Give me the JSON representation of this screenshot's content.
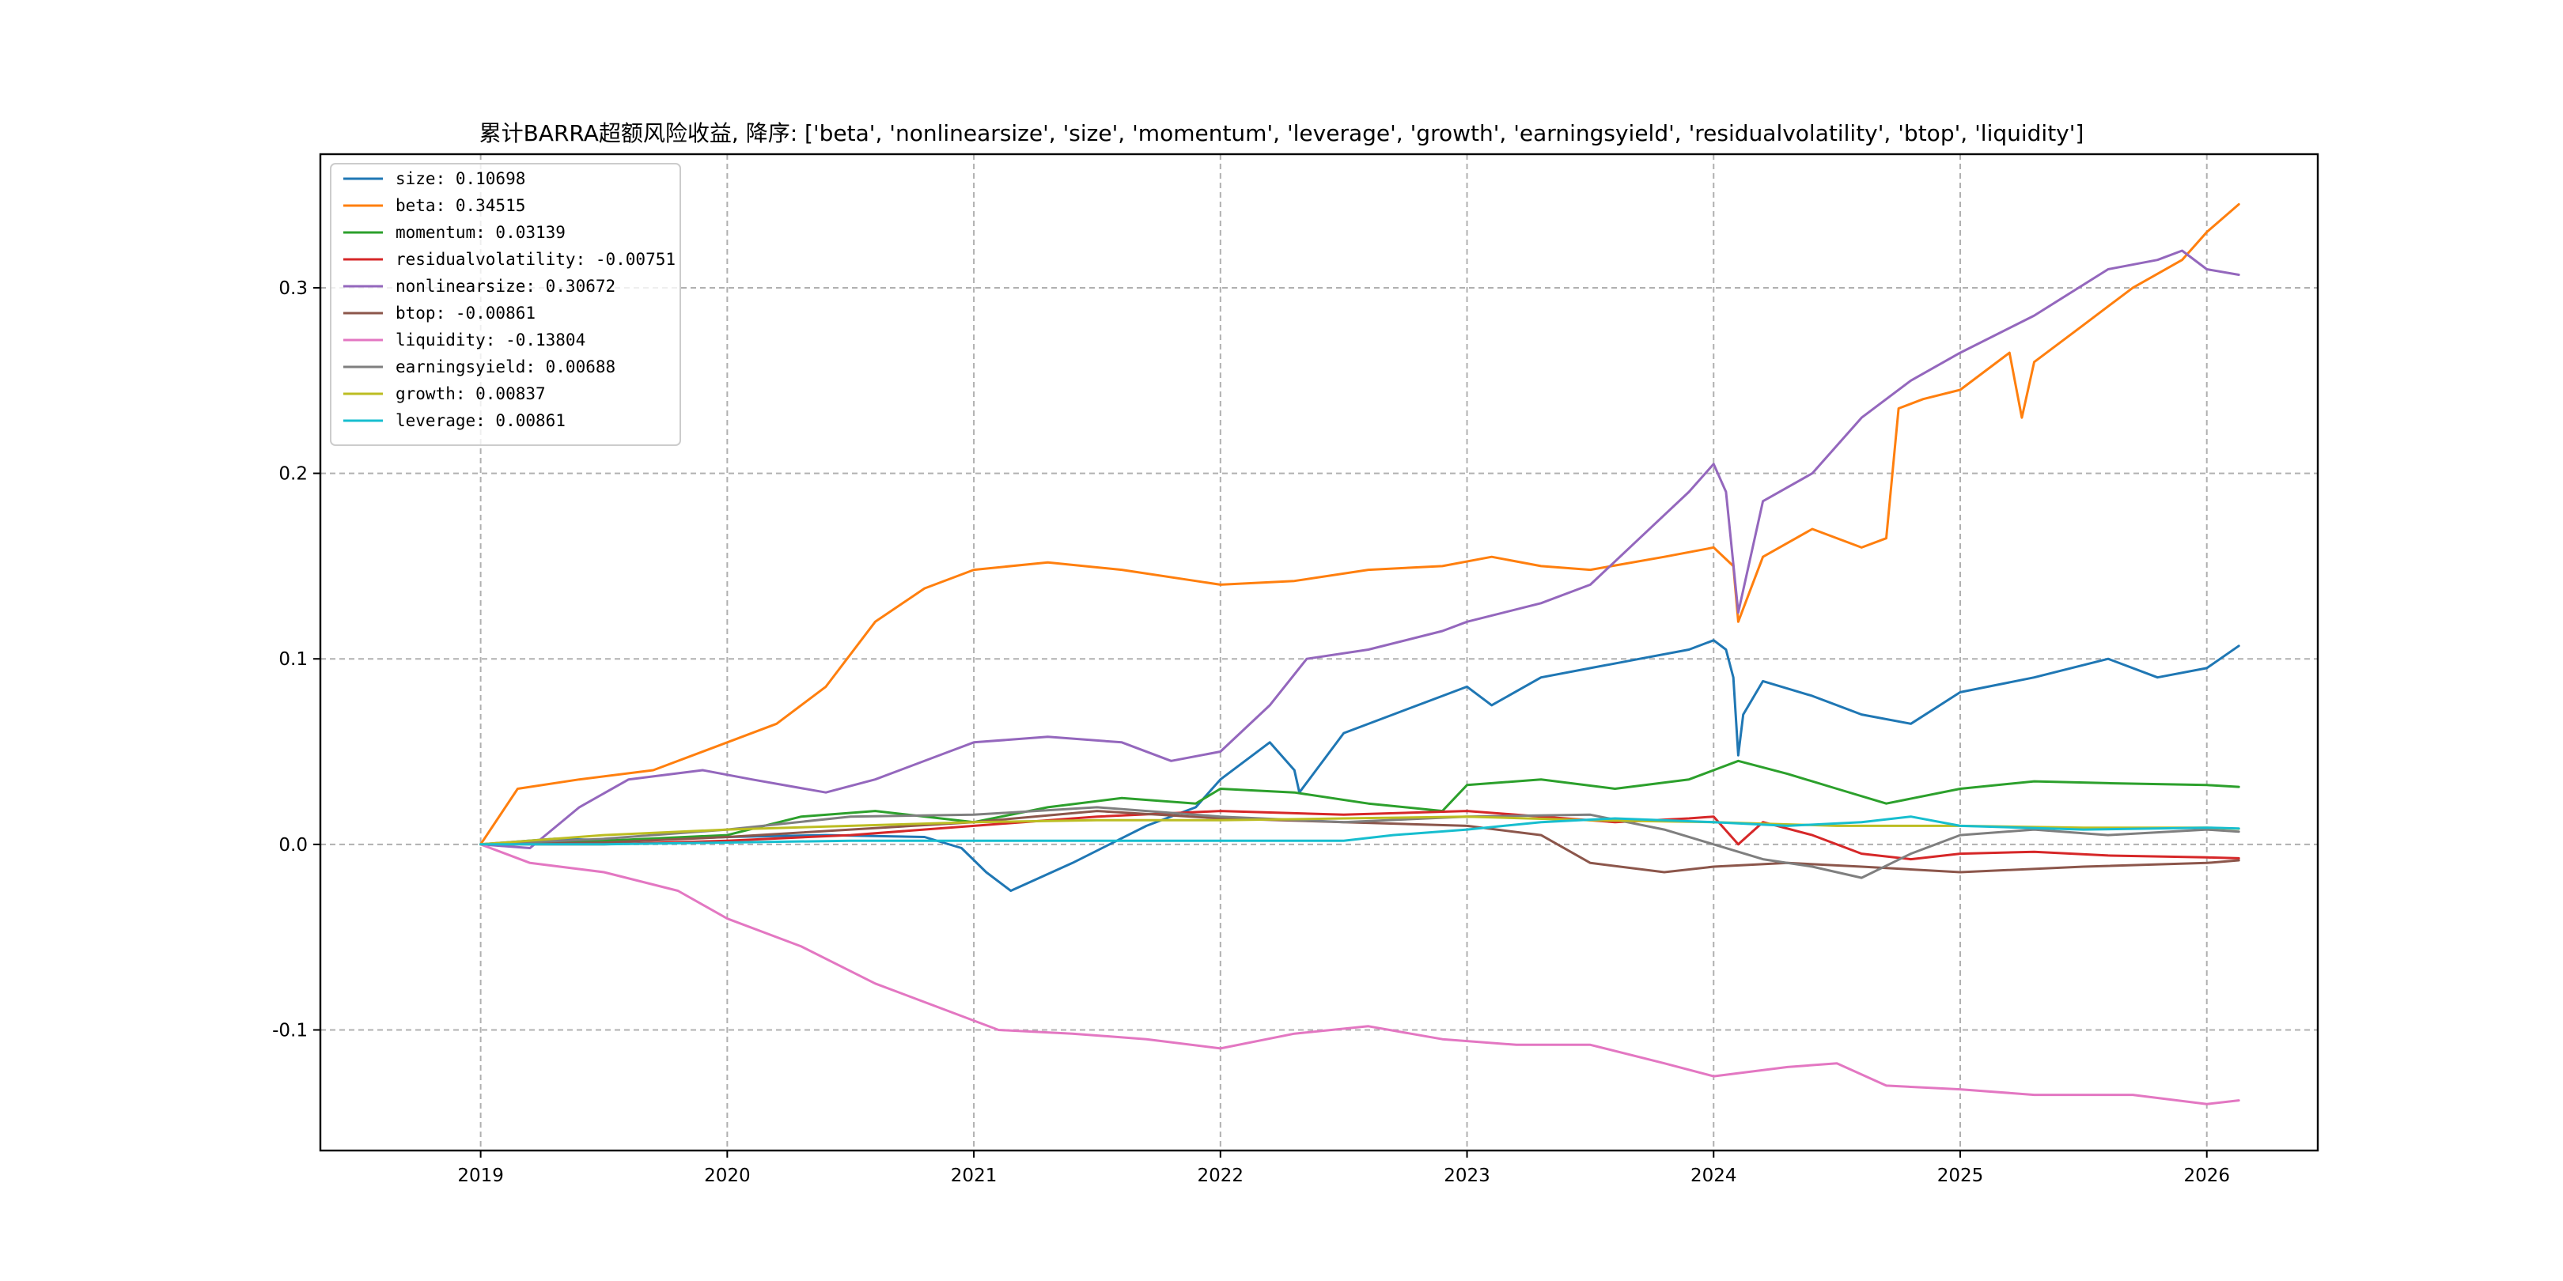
{
  "chart_data": {
    "type": "line",
    "title": "累计BARRA超额风险收益,  降序: ['beta', 'nonlinearsize', 'size', 'momentum', 'leverage', 'growth', 'earningsyield', 'residualvolatility', 'btop', 'liquidity']",
    "xlabel": "",
    "ylabel": "",
    "x_ticks": [
      "2019",
      "2020",
      "2021",
      "2022",
      "2023",
      "2024",
      "2025",
      "2026"
    ],
    "y_ticks": [
      "-0.1",
      "0.0",
      "0.1",
      "0.2",
      "0.3"
    ],
    "y_tick_values": [
      -0.1,
      0.0,
      0.1,
      0.2,
      0.3
    ],
    "xlim": [
      2018.35,
      2026.45
    ],
    "ylim": [
      -0.165,
      0.372
    ],
    "grid": true,
    "legend_position": "top-left",
    "series": [
      {
        "name": "size",
        "legend": "size: 0.10698",
        "color": "#1f77b4",
        "x": [
          2019.0,
          2019.3,
          2019.6,
          2020.0,
          2020.4,
          2020.8,
          2020.95,
          2021.05,
          2021.15,
          2021.4,
          2021.7,
          2021.9,
          2022.0,
          2022.2,
          2022.3,
          2022.32,
          2022.5,
          2022.7,
          2022.9,
          2023.0,
          2023.1,
          2023.3,
          2023.5,
          2023.7,
          2023.9,
          2024.0,
          2024.05,
          2024.08,
          2024.1,
          2024.12,
          2024.2,
          2024.4,
          2024.6,
          2024.8,
          2025.0,
          2025.3,
          2025.6,
          2025.8,
          2026.0,
          2026.13
        ],
        "values": [
          0.0,
          0.003,
          0.002,
          0.004,
          0.005,
          0.004,
          -0.002,
          -0.015,
          -0.025,
          -0.01,
          0.01,
          0.02,
          0.035,
          0.055,
          0.04,
          0.028,
          0.06,
          0.07,
          0.08,
          0.085,
          0.075,
          0.09,
          0.095,
          0.1,
          0.105,
          0.11,
          0.105,
          0.09,
          0.048,
          0.07,
          0.088,
          0.08,
          0.07,
          0.065,
          0.082,
          0.09,
          0.1,
          0.09,
          0.095,
          0.107
        ]
      },
      {
        "name": "beta",
        "legend": "beta: 0.34515",
        "color": "#ff7f0e",
        "x": [
          2019.0,
          2019.15,
          2019.4,
          2019.7,
          2020.0,
          2020.2,
          2020.4,
          2020.6,
          2020.8,
          2021.0,
          2021.3,
          2021.6,
          2021.9,
          2022.0,
          2022.3,
          2022.6,
          2022.9,
          2023.1,
          2023.3,
          2023.5,
          2023.8,
          2024.0,
          2024.08,
          2024.1,
          2024.2,
          2024.4,
          2024.6,
          2024.7,
          2024.75,
          2024.85,
          2025.0,
          2025.2,
          2025.25,
          2025.3,
          2025.5,
          2025.7,
          2025.9,
          2026.0,
          2026.13
        ],
        "values": [
          0.0,
          0.03,
          0.035,
          0.04,
          0.055,
          0.065,
          0.085,
          0.12,
          0.138,
          0.148,
          0.152,
          0.148,
          0.142,
          0.14,
          0.142,
          0.148,
          0.15,
          0.155,
          0.15,
          0.148,
          0.155,
          0.16,
          0.15,
          0.12,
          0.155,
          0.17,
          0.16,
          0.165,
          0.235,
          0.24,
          0.245,
          0.265,
          0.23,
          0.26,
          0.28,
          0.3,
          0.315,
          0.33,
          0.345
        ]
      },
      {
        "name": "momentum",
        "legend": "momentum: 0.03139",
        "color": "#2ca02c",
        "x": [
          2019.0,
          2019.5,
          2020.0,
          2020.3,
          2020.6,
          2021.0,
          2021.3,
          2021.6,
          2021.9,
          2022.0,
          2022.3,
          2022.6,
          2022.9,
          2023.0,
          2023.3,
          2023.6,
          2023.9,
          2024.0,
          2024.1,
          2024.3,
          2024.5,
          2024.7,
          2025.0,
          2025.3,
          2025.6,
          2026.0,
          2026.13
        ],
        "values": [
          0.0,
          0.002,
          0.005,
          0.015,
          0.018,
          0.012,
          0.02,
          0.025,
          0.022,
          0.03,
          0.028,
          0.022,
          0.018,
          0.032,
          0.035,
          0.03,
          0.035,
          0.04,
          0.045,
          0.038,
          0.03,
          0.022,
          0.03,
          0.034,
          0.033,
          0.032,
          0.031
        ]
      },
      {
        "name": "residualvolatility",
        "legend": "residualvolatility: -0.00751",
        "color": "#d62728",
        "x": [
          2019.0,
          2019.5,
          2020.0,
          2020.5,
          2021.0,
          2021.5,
          2022.0,
          2022.5,
          2023.0,
          2023.3,
          2023.6,
          2023.9,
          2024.0,
          2024.1,
          2024.2,
          2024.4,
          2024.6,
          2024.8,
          2025.0,
          2025.3,
          2025.6,
          2026.0,
          2026.13
        ],
        "values": [
          0.0,
          0.0,
          0.002,
          0.005,
          0.01,
          0.015,
          0.018,
          0.016,
          0.018,
          0.015,
          0.012,
          0.014,
          0.015,
          0.0,
          0.012,
          0.005,
          -0.005,
          -0.008,
          -0.005,
          -0.004,
          -0.006,
          -0.007,
          -0.0075
        ]
      },
      {
        "name": "nonlinearsize",
        "legend": "nonlinearsize: 0.30672",
        "color": "#9467bd",
        "x": [
          2019.0,
          2019.2,
          2019.4,
          2019.6,
          2019.9,
          2020.1,
          2020.4,
          2020.6,
          2020.9,
          2021.0,
          2021.3,
          2021.6,
          2021.8,
          2022.0,
          2022.2,
          2022.35,
          2022.6,
          2022.9,
          2023.0,
          2023.3,
          2023.5,
          2023.7,
          2023.9,
          2024.0,
          2024.05,
          2024.1,
          2024.2,
          2024.4,
          2024.6,
          2024.8,
          2025.0,
          2025.3,
          2025.6,
          2025.8,
          2025.9,
          2026.0,
          2026.13
        ],
        "values": [
          0.0,
          -0.002,
          0.02,
          0.035,
          0.04,
          0.035,
          0.028,
          0.035,
          0.05,
          0.055,
          0.058,
          0.055,
          0.045,
          0.05,
          0.075,
          0.1,
          0.105,
          0.115,
          0.12,
          0.13,
          0.14,
          0.165,
          0.19,
          0.205,
          0.19,
          0.125,
          0.185,
          0.2,
          0.23,
          0.25,
          0.265,
          0.285,
          0.31,
          0.315,
          0.32,
          0.31,
          0.307
        ]
      },
      {
        "name": "btop",
        "legend": "btop: -0.00861",
        "color": "#8c564b",
        "x": [
          2019.0,
          2019.5,
          2020.0,
          2020.5,
          2021.0,
          2021.5,
          2022.0,
          2022.5,
          2023.0,
          2023.3,
          2023.5,
          2023.8,
          2024.0,
          2024.3,
          2024.6,
          2025.0,
          2025.5,
          2026.0,
          2026.13
        ],
        "values": [
          0.0,
          0.001,
          0.004,
          0.008,
          0.012,
          0.018,
          0.014,
          0.012,
          0.01,
          0.005,
          -0.01,
          -0.015,
          -0.012,
          -0.01,
          -0.012,
          -0.015,
          -0.012,
          -0.01,
          -0.0086
        ]
      },
      {
        "name": "liquidity",
        "legend": "liquidity: -0.13804",
        "color": "#e377c2",
        "x": [
          2019.0,
          2019.2,
          2019.5,
          2019.8,
          2020.0,
          2020.3,
          2020.6,
          2020.9,
          2021.1,
          2021.4,
          2021.7,
          2022.0,
          2022.3,
          2022.6,
          2022.9,
          2023.2,
          2023.5,
          2023.8,
          2024.0,
          2024.3,
          2024.5,
          2024.7,
          2025.0,
          2025.3,
          2025.7,
          2026.0,
          2026.13
        ],
        "values": [
          0.0,
          -0.01,
          -0.015,
          -0.025,
          -0.04,
          -0.055,
          -0.075,
          -0.09,
          -0.1,
          -0.102,
          -0.105,
          -0.11,
          -0.102,
          -0.098,
          -0.105,
          -0.108,
          -0.108,
          -0.118,
          -0.125,
          -0.12,
          -0.118,
          -0.13,
          -0.132,
          -0.135,
          -0.135,
          -0.14,
          -0.138
        ]
      },
      {
        "name": "earningsyield",
        "legend": "earningsyield: 0.00688",
        "color": "#7f7f7f",
        "x": [
          2019.0,
          2019.5,
          2020.0,
          2020.5,
          2021.0,
          2021.5,
          2022.0,
          2022.5,
          2023.0,
          2023.5,
          2023.8,
          2024.0,
          2024.2,
          2024.4,
          2024.6,
          2024.8,
          2025.0,
          2025.3,
          2025.6,
          2026.0,
          2026.13
        ],
        "values": [
          0.0,
          0.003,
          0.008,
          0.015,
          0.016,
          0.02,
          0.015,
          0.012,
          0.015,
          0.016,
          0.008,
          0.0,
          -0.008,
          -0.012,
          -0.018,
          -0.005,
          0.005,
          0.008,
          0.005,
          0.008,
          0.0069
        ]
      },
      {
        "name": "growth",
        "legend": "growth: 0.00837",
        "color": "#bcbd22",
        "x": [
          2019.0,
          2019.5,
          2020.0,
          2020.5,
          2021.0,
          2021.5,
          2022.0,
          2022.5,
          2023.0,
          2023.5,
          2024.0,
          2024.5,
          2025.0,
          2025.5,
          2026.0,
          2026.13
        ],
        "values": [
          0.0,
          0.005,
          0.008,
          0.01,
          0.012,
          0.013,
          0.013,
          0.014,
          0.015,
          0.013,
          0.012,
          0.01,
          0.01,
          0.009,
          0.009,
          0.0084
        ]
      },
      {
        "name": "leverage",
        "legend": "leverage: 0.00861",
        "color": "#17becf",
        "x": [
          2019.0,
          2019.5,
          2020.0,
          2020.5,
          2021.0,
          2021.5,
          2022.0,
          2022.5,
          2022.7,
          2023.0,
          2023.3,
          2023.6,
          2024.0,
          2024.3,
          2024.6,
          2024.8,
          2025.0,
          2025.5,
          2026.0,
          2026.13
        ],
        "values": [
          0.0,
          0.0,
          0.001,
          0.002,
          0.002,
          0.002,
          0.002,
          0.002,
          0.005,
          0.008,
          0.012,
          0.014,
          0.012,
          0.01,
          0.012,
          0.015,
          0.01,
          0.008,
          0.009,
          0.0086
        ]
      }
    ]
  }
}
